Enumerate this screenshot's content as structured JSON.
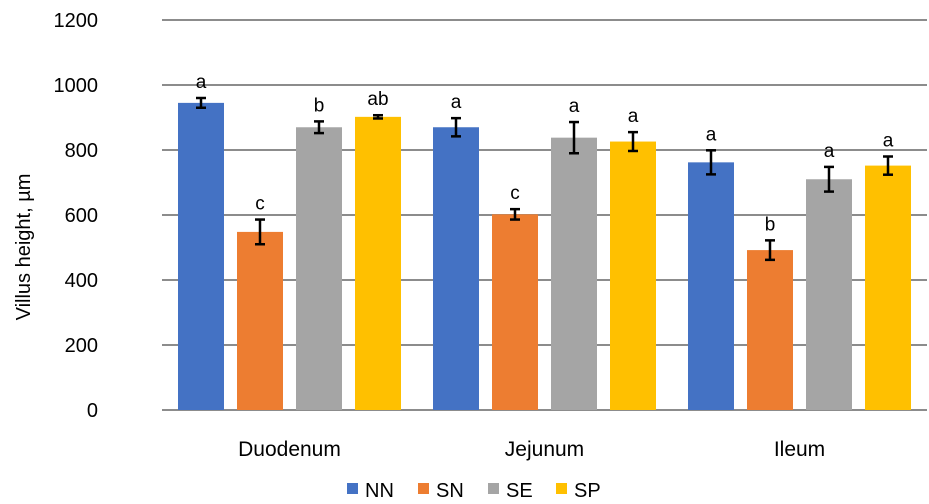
{
  "chart_data": {
    "type": "bar",
    "title": "",
    "xlabel": "",
    "ylabel": "Villus height, µm",
    "ylim": [
      0,
      1200
    ],
    "yticks": [
      0,
      200,
      400,
      600,
      800,
      1000,
      1200
    ],
    "grid": true,
    "legend_position": "bottom",
    "categories": [
      "Duodenum",
      "Jejunum",
      "Ileum"
    ],
    "series": [
      {
        "name": "NN",
        "color": "#4472C4",
        "values": [
          945,
          870,
          762
        ],
        "errors": [
          15,
          28,
          37
        ],
        "labels": [
          "a",
          "a",
          "a"
        ]
      },
      {
        "name": "SN",
        "color": "#ED7D31",
        "values": [
          548,
          602,
          492
        ],
        "errors": [
          38,
          16,
          30
        ],
        "labels": [
          "c",
          "c",
          "b"
        ]
      },
      {
        "name": "SE",
        "color": "#A5A5A5",
        "values": [
          870,
          838,
          710
        ],
        "errors": [
          18,
          48,
          38
        ],
        "labels": [
          "b",
          "a",
          "a"
        ]
      },
      {
        "name": "SP",
        "color": "#FFC000",
        "values": [
          902,
          826,
          752
        ],
        "errors": [
          5,
          29,
          28
        ],
        "labels": [
          "ab",
          "a",
          "a"
        ]
      }
    ]
  }
}
